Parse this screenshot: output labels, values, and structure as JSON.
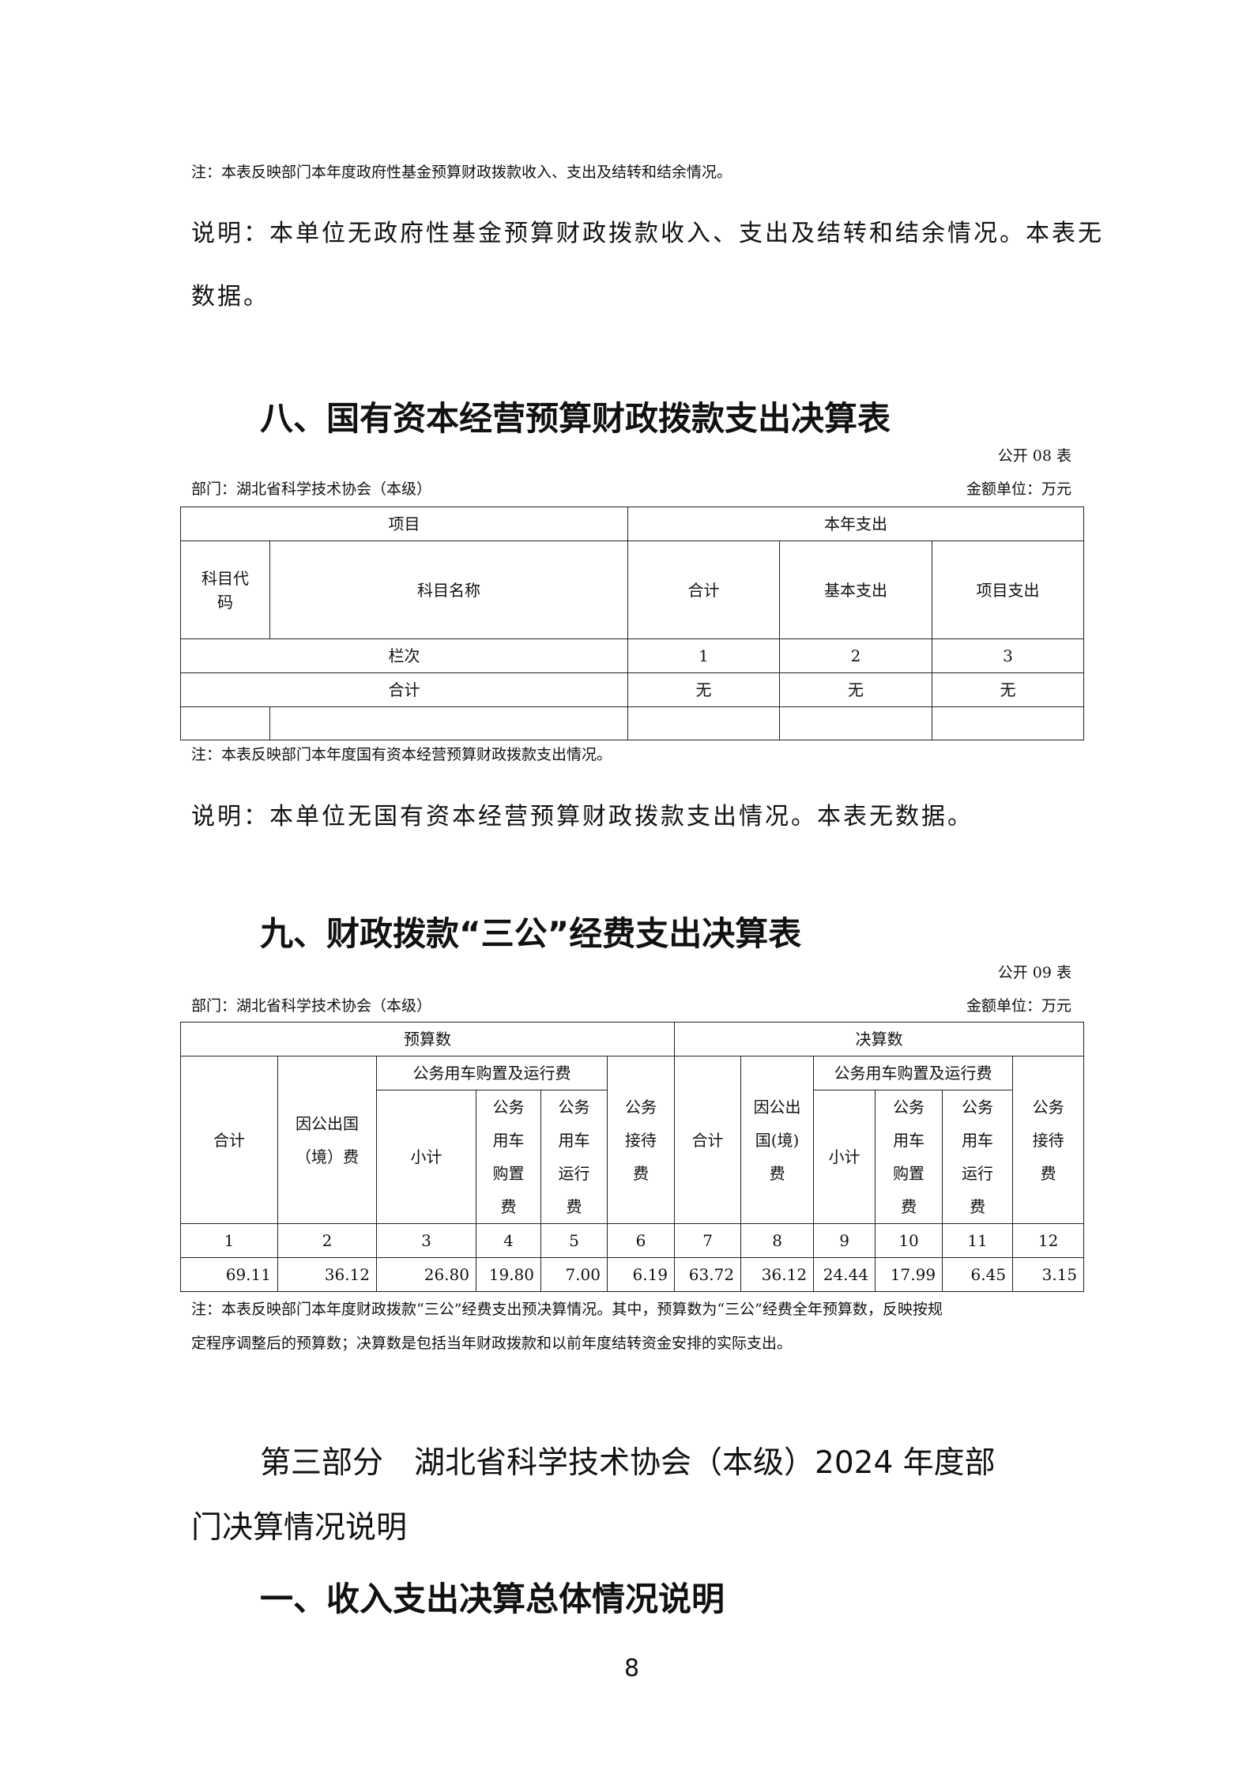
{
  "top": {
    "note": "注：本表反映部门本年度政府性基金预算财政拨款收入、支出及结转和结余情况。",
    "explain_line1": "说明：本单位无政府性基金预算财政拨款收入、支出及结转和结余情况。本表无",
    "explain_line2": "数据。"
  },
  "section8": {
    "title": "八、国有资本经营预算财政拨款支出决算表",
    "table_no": "公开 08 表",
    "dept": "部门：湖北省科学技术协会（本级）",
    "unit": "金额单位：万元",
    "headers": {
      "item": "项目",
      "current_year": "本年支出",
      "code": "科目代码",
      "name": "科目名称",
      "total": "合计",
      "basic": "基本支出",
      "project": "项目支出",
      "column_no": "栏次",
      "col_nums": [
        "1",
        "2",
        "3"
      ],
      "sum_label": "合计",
      "sum_values": [
        "无",
        "无",
        "无"
      ]
    },
    "note": "注：本表反映部门本年度国有资本经营预算财政拨款支出情况。",
    "explain": "说明：本单位无国有资本经营预算财政拨款支出情况。本表无数据。"
  },
  "section9": {
    "title": "九、财政拨款“三公”经费支出决算表",
    "table_no": "公开 09 表",
    "dept": "部门：湖北省科学技术协会（本级）",
    "unit": "金额单位：万元",
    "headers": {
      "budget": "预算数",
      "final": "决算数",
      "total": "合计",
      "abroad_budget": "因公出国（境）费",
      "abroad_final": "因公出国(境)费",
      "vehicle": "公务用车购置及运行费",
      "subtotal": "小计",
      "vehicle_buy": "公务用车购置费",
      "vehicle_run": "公务用车运行费",
      "reception": "公务接待费"
    },
    "col_nums": [
      "1",
      "2",
      "3",
      "4",
      "5",
      "6",
      "7",
      "8",
      "9",
      "10",
      "11",
      "12"
    ],
    "values": [
      "69.11",
      "36.12",
      "26.80",
      "19.80",
      "7.00",
      "6.19",
      "63.72",
      "36.12",
      "24.44",
      "17.99",
      "6.45",
      "3.15"
    ],
    "note_line1": "注：本表反映部门本年度财政拨款“三公”经费支出预决算情况。其中，预算数为“三公”经费全年预算数，反映按规",
    "note_line2": "定程序调整后的预算数；决算数是包括当年财政拨款和以前年度结转资金安排的实际支出。"
  },
  "part3": {
    "title_line1": "第三部分　湖北省科学技术协会（本级）2024 年度部",
    "title_line2": "门决算情况说明",
    "subtitle": "一、收入支出决算总体情况说明"
  },
  "page_number": "8"
}
